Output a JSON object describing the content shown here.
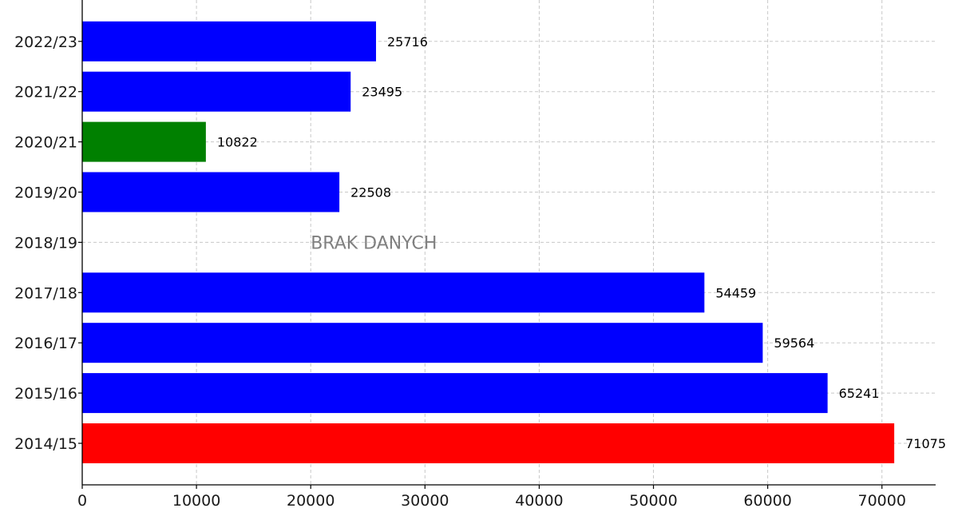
{
  "chart_data": {
    "type": "bar",
    "orientation": "horizontal",
    "categories": [
      "2014/15",
      "2015/16",
      "2016/17",
      "2017/18",
      "2018/19",
      "2019/20",
      "2020/21",
      "2021/22",
      "2022/23"
    ],
    "values": [
      71075,
      65241,
      59564,
      54459,
      null,
      22508,
      10822,
      23495,
      25716
    ],
    "value_labels": [
      "71075",
      "65241",
      "59564",
      "54459",
      "",
      "22508",
      "10822",
      "23495",
      "25716"
    ],
    "bar_colors": [
      "#ff0000",
      "#0000ff",
      "#0000ff",
      "#0000ff",
      "",
      "#0000ff",
      "#008000",
      "#0000ff",
      "#0000ff"
    ],
    "x_ticks": [
      0,
      10000,
      20000,
      30000,
      40000,
      50000,
      60000,
      70000
    ],
    "x_tick_labels": [
      "0",
      "10000",
      "20000",
      "30000",
      "40000",
      "50000",
      "60000",
      "70000"
    ],
    "xlim": [
      0,
      74700
    ],
    "grid": true,
    "annotations": [
      {
        "text": "BRAK DANYCH",
        "category": "2018/19",
        "x": 20000,
        "color": "#808080"
      }
    ],
    "title": "",
    "xlabel": "",
    "ylabel": ""
  }
}
